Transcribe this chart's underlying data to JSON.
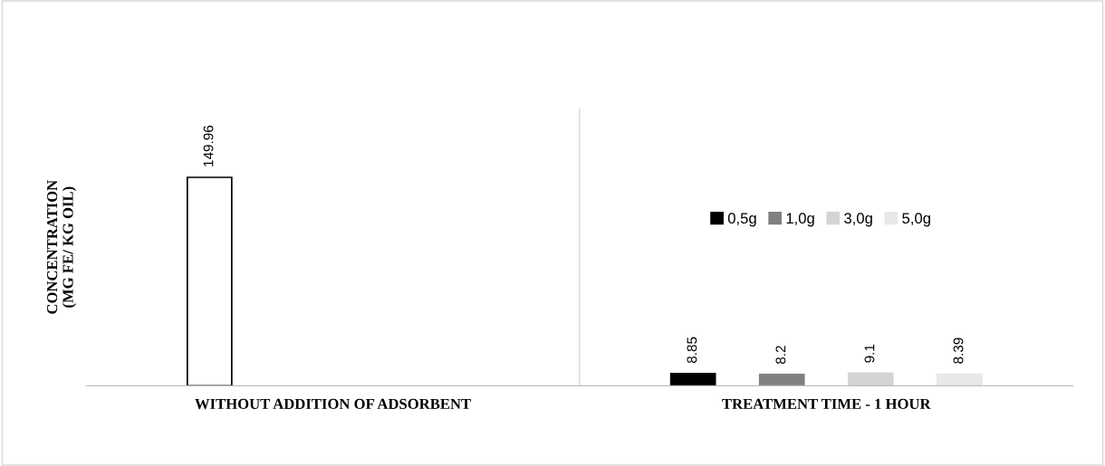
{
  "chart_data": {
    "type": "bar",
    "ylabel": "CONCENTRATION\n(MG FE/ KG OIL)",
    "categories": [
      "WITHOUT ADDITION OF ADSORBENT",
      "TREATMENT TIME - 1 HOUR"
    ],
    "series": [
      {
        "color": "#ffffff",
        "values": [
          149.96,
          null
        ]
      },
      {
        "name": "0,5g",
        "color": "#000000",
        "values": [
          null,
          8.85
        ]
      },
      {
        "name": "1,0g",
        "color": "#808080",
        "values": [
          null,
          8.2
        ]
      },
      {
        "name": "3,0g",
        "color": "#d4d4d4",
        "values": [
          null,
          9.1
        ]
      },
      {
        "name": "5,0g",
        "color": "#e8e8e8",
        "values": [
          null,
          8.39
        ]
      }
    ],
    "data_labels": true,
    "grid": false,
    "legend": "right"
  }
}
